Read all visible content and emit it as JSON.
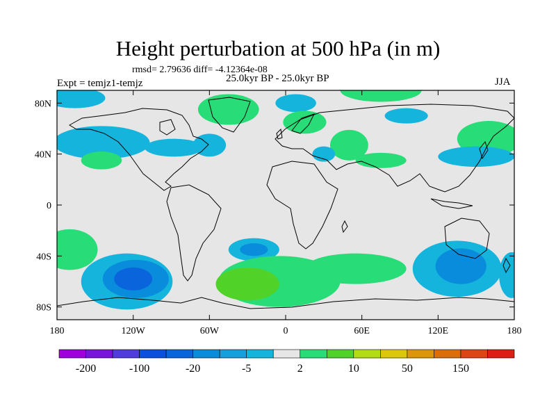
{
  "title": "Height perturbation at 500 hPa (in m)",
  "stats": "rmsd= 2.79636 diff= -4.12364e-08",
  "period": "25.0kyr BP - 25.0kyr BP",
  "experiment": "Expt = temjz1-temjz",
  "season": "JJA",
  "map": {
    "projection": "cylindrical-equidistant",
    "lon_range": [
      -180,
      180
    ],
    "lat_range": [
      -90,
      90
    ],
    "background_color": "#e6e6e6",
    "coastline_color": "#000000",
    "x_ticks": [
      {
        "value": -180,
        "label": "180"
      },
      {
        "value": -120,
        "label": "120W"
      },
      {
        "value": -60,
        "label": "60W"
      },
      {
        "value": 0,
        "label": "0"
      },
      {
        "value": 60,
        "label": "60E"
      },
      {
        "value": 120,
        "label": "120E"
      },
      {
        "value": 180,
        "label": "180"
      }
    ],
    "y_ticks": [
      {
        "value": 80,
        "label": "80N"
      },
      {
        "value": 40,
        "label": "40N"
      },
      {
        "value": 0,
        "label": "0"
      },
      {
        "value": -40,
        "label": "40S"
      },
      {
        "value": -80,
        "label": "80S"
      }
    ],
    "fill_regions": [
      {
        "level": "-5 to 2",
        "color": "#14b4dc",
        "lon": -166,
        "lat": 84,
        "rlon": 24,
        "rlat": 8
      },
      {
        "level": "-5 to 2",
        "color": "#14b4dc",
        "lon": -145,
        "lat": 49,
        "rlon": 38,
        "rlat": 13
      },
      {
        "level": "2 to 10",
        "color": "#28dc78",
        "lon": -145,
        "lat": 35,
        "rlon": 16,
        "rlat": 7
      },
      {
        "level": "-5 to 2",
        "color": "#14b4dc",
        "lon": -88,
        "lat": 45,
        "rlon": 23,
        "rlat": 7
      },
      {
        "level": "2 to 10",
        "color": "#28dc78",
        "lon": -45,
        "lat": 75,
        "rlon": 24,
        "rlat": 12
      },
      {
        "level": "-5 to 2",
        "color": "#14b4dc",
        "lon": -60,
        "lat": 47,
        "rlon": 13,
        "rlat": 9
      },
      {
        "level": "-5 to 2",
        "color": "#14b4dc",
        "lon": 8,
        "lat": 80,
        "rlon": 16,
        "rlat": 7
      },
      {
        "level": "2 to 10",
        "color": "#28dc78",
        "lon": 15,
        "lat": 65,
        "rlon": 17,
        "rlat": 9
      },
      {
        "level": "2 to 10",
        "color": "#28dc78",
        "lon": 50,
        "lat": 47,
        "rlon": 15,
        "rlat": 12
      },
      {
        "level": "-5 to 2",
        "color": "#14b4dc",
        "lon": 30,
        "lat": 40,
        "rlon": 9,
        "rlat": 6
      },
      {
        "level": "2 to 10",
        "color": "#28dc78",
        "lon": 75,
        "lat": 35,
        "rlon": 20,
        "rlat": 6
      },
      {
        "level": "-5 to 2",
        "color": "#14b4dc",
        "lon": 95,
        "lat": 70,
        "rlon": 17,
        "rlat": 6
      },
      {
        "level": "2 to 10",
        "color": "#28dc78",
        "lon": 75,
        "lat": 90,
        "rlon": 32,
        "rlat": 9
      },
      {
        "level": "2 to 10",
        "color": "#28dc78",
        "lon": 160,
        "lat": 52,
        "rlon": 25,
        "rlat": 14
      },
      {
        "level": "-5 to 2",
        "color": "#14b4dc",
        "lon": 150,
        "lat": 38,
        "rlon": 30,
        "rlat": 8
      },
      {
        "level": "2 to 10",
        "color": "#28dc78",
        "lon": -170,
        "lat": -35,
        "rlon": 22,
        "rlat": 16
      },
      {
        "level": "-5 to 2",
        "color": "#14b4dc",
        "lon": -125,
        "lat": -60,
        "rlon": 36,
        "rlat": 22
      },
      {
        "level": "-20 to -5",
        "color": "#0a8cdc",
        "lon": -118,
        "lat": -58,
        "rlon": 26,
        "rlat": 15
      },
      {
        "level": "-100 to -20",
        "color": "#0a64dc",
        "lon": -120,
        "lat": -58,
        "rlon": 15,
        "rlat": 9
      },
      {
        "level": "-5 to 2",
        "color": "#14b4dc",
        "lon": -25,
        "lat": -35,
        "rlon": 20,
        "rlat": 9
      },
      {
        "level": "-20 to -5",
        "color": "#0a8cdc",
        "lon": -25,
        "lat": -35,
        "rlon": 11,
        "rlat": 5
      },
      {
        "level": "2 to 10",
        "color": "#28dc78",
        "lon": -5,
        "lat": -60,
        "rlon": 48,
        "rlat": 20
      },
      {
        "level": "10 to 20",
        "color": "#50d228",
        "lon": -30,
        "lat": -62,
        "rlon": 25,
        "rlat": 13
      },
      {
        "level": "2 to 10",
        "color": "#28dc78",
        "lon": 55,
        "lat": -50,
        "rlon": 40,
        "rlat": 12
      },
      {
        "level": "-5 to 2",
        "color": "#14b4dc",
        "lon": 135,
        "lat": -50,
        "rlon": 35,
        "rlat": 22
      },
      {
        "level": "-20 to -5",
        "color": "#0a8cdc",
        "lon": 138,
        "lat": -48,
        "rlon": 20,
        "rlat": 14
      },
      {
        "level": "-5 to 2",
        "color": "#14b4dc",
        "lon": 178,
        "lat": -55,
        "rlon": 10,
        "rlat": 18
      }
    ]
  },
  "colorbar": {
    "colors": [
      "#a000dc",
      "#7814dc",
      "#503cdc",
      "#0a50dc",
      "#0a64dc",
      "#0a8cdc",
      "#14a0dc",
      "#14b4dc",
      "#e6e6e6",
      "#28dc78",
      "#50d228",
      "#b4dc14",
      "#dcc80a",
      "#dc960a",
      "#dc6e0a",
      "#dc4614",
      "#dc1e14"
    ],
    "labels": [
      "-200",
      "-100",
      "-20",
      "-5",
      "2",
      "10",
      "50",
      "150"
    ]
  }
}
